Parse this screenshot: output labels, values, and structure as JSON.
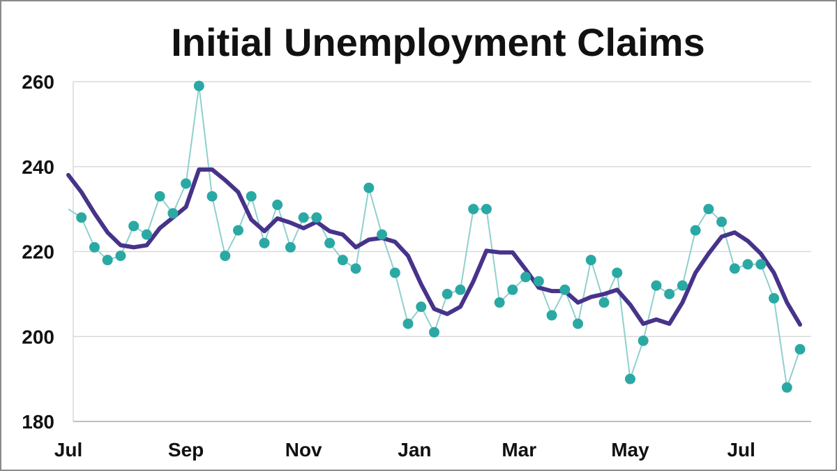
{
  "chart_data": {
    "type": "line",
    "title": "Initial Unemployment Claims",
    "xlabel": "",
    "ylabel": "",
    "ylim": [
      180,
      260
    ],
    "yticks": [
      180,
      200,
      220,
      240,
      260
    ],
    "xticks": [
      {
        "label": "Jul",
        "week": 0
      },
      {
        "label": "Sep",
        "week": 9
      },
      {
        "label": "Nov",
        "week": 18
      },
      {
        "label": "Jan",
        "week": 26.5
      },
      {
        "label": "Mar",
        "week": 34.5
      },
      {
        "label": "May",
        "week": 43
      },
      {
        "label": "Jul",
        "week": 51.5
      }
    ],
    "grid": true,
    "legend": "none",
    "colors": {
      "weekly": "#2aa9a4",
      "weekly_line": "#8fd0cd",
      "average": "#47338a",
      "grid": "#d9d9d9"
    },
    "series": [
      {
        "style": "line-markers",
        "values": [
          230,
          228,
          221,
          218,
          219,
          226,
          224,
          233,
          229,
          236,
          259,
          233,
          219,
          225,
          233,
          222,
          231,
          221,
          228,
          228,
          222,
          218,
          216,
          235,
          224,
          215,
          203,
          207,
          201,
          210,
          211,
          230,
          230,
          208,
          211,
          214,
          213,
          205,
          211,
          203,
          218,
          208,
          215,
          190,
          199,
          212,
          210,
          212,
          225,
          230,
          227,
          216,
          217,
          217,
          209,
          188,
          197
        ]
      },
      {
        "style": "thick-line",
        "values": [
          238,
          234,
          229,
          224.5,
          221.5,
          221,
          221.5,
          225.5,
          228,
          230.5,
          239.3,
          239.3,
          236.8,
          234,
          227.5,
          224.8,
          227.8,
          226.8,
          225.5,
          227,
          224.8,
          224,
          221,
          222.8,
          223.2,
          222.3,
          219,
          212.3,
          206.5,
          205.3,
          207,
          213,
          220.2,
          219.8,
          219.8,
          215.8,
          211.5,
          210.7,
          210.7,
          208,
          209.3,
          210,
          211,
          207.5,
          203,
          204,
          203,
          208,
          215,
          219.5,
          223.5,
          224.5,
          222.5,
          219.5,
          215,
          208,
          202.8
        ]
      }
    ]
  }
}
